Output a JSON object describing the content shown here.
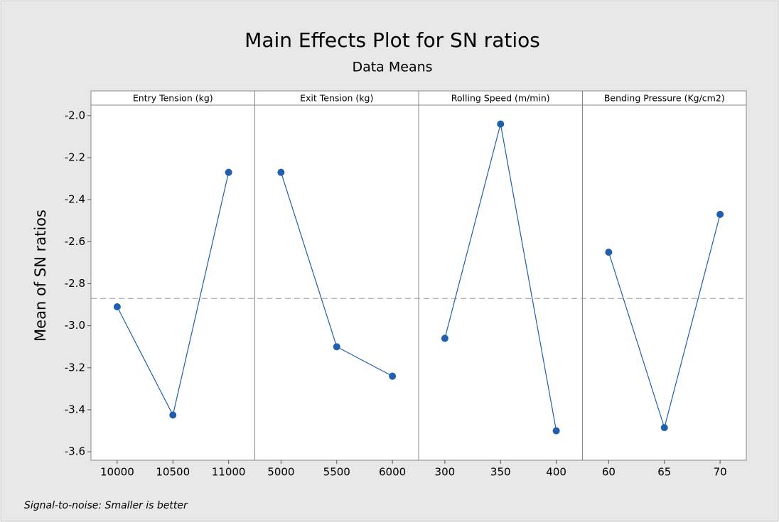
{
  "chart_data": {
    "type": "line",
    "title": "Main Effects Plot for SN ratios",
    "subtitle": "Data Means",
    "ylabel": "Mean of SN ratios",
    "footnote": "Signal-to-noise: Smaller is better",
    "color": "#1f5fae",
    "reference_line": -2.87,
    "ylim": [
      -3.64,
      -1.95
    ],
    "yticks": [
      {
        "value": -2,
        "label": "-2.0"
      },
      -2.2,
      -2.4,
      -2.6,
      -2.8,
      {
        "value": -3,
        "label": "-3.0"
      },
      -3.2,
      -3.4,
      -3.6
    ],
    "panels": [
      {
        "title": "Entry Tension (kg)",
        "categories": [
          "10000",
          "10500",
          "11000"
        ],
        "values": [
          -2.91,
          -3.425,
          -2.27
        ]
      },
      {
        "title": "Exit Tension (kg)",
        "categories": [
          "5000",
          "5500",
          "6000"
        ],
        "values": [
          -2.27,
          -3.1,
          -3.24
        ]
      },
      {
        "title": "Rolling Speed (m/min)",
        "categories": [
          "300",
          "350",
          "400"
        ],
        "values": [
          -3.06,
          -2.04,
          -3.5
        ]
      },
      {
        "title": "Bending Pressure (Kg/cm2)",
        "categories": [
          "60",
          "65",
          "70"
        ],
        "values": [
          -2.65,
          -3.485,
          -2.47
        ]
      }
    ]
  }
}
